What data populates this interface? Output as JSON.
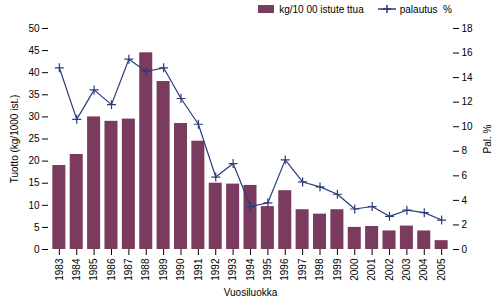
{
  "chart_data": {
    "type": "bar",
    "xlabel": "Vuosiluokka",
    "ylabel": "Tuotto (kg/1000 ist.)",
    "y2label": "Pal. %",
    "categories": [
      "1983",
      "1984",
      "1985",
      "1986",
      "1987",
      "1988",
      "1989",
      "1990",
      "1991",
      "1992",
      "1993",
      "1994",
      "1995",
      "1996",
      "1997",
      "1998",
      "1999",
      "2000",
      "2001",
      "2002",
      "2003",
      "2004",
      "2005"
    ],
    "series": [
      {
        "name": "kg/10 00 istute ttua",
        "type": "bar",
        "color": "#7B3B5E",
        "values": [
          19,
          21.5,
          30,
          29,
          29.5,
          44.5,
          38,
          28.5,
          24.5,
          15,
          14.8,
          14.5,
          9.7,
          13.3,
          9.0,
          8.0,
          9.0,
          5.0,
          5.2,
          4.2,
          5.3,
          4.2,
          2.0
        ]
      },
      {
        "name": "palautus  %",
        "type": "line",
        "color": "#2B3B7B",
        "marker": "plus",
        "axis": "y2",
        "values": [
          14.8,
          10.6,
          13.0,
          11.8,
          15.5,
          14.5,
          14.8,
          12.3,
          10.2,
          5.9,
          7.0,
          3.5,
          3.8,
          7.3,
          5.5,
          5.1,
          4.5,
          3.3,
          3.5,
          2.7,
          3.2,
          3.0,
          2.4
        ]
      }
    ],
    "ylim": [
      0,
      50
    ],
    "yticks": [
      0,
      5,
      10,
      15,
      20,
      25,
      30,
      35,
      40,
      45,
      50
    ],
    "y2lim": [
      0,
      18
    ],
    "y2ticks": [
      0,
      2,
      4,
      6,
      8,
      10,
      12,
      14,
      16,
      18
    ],
    "legend": "upper right"
  }
}
